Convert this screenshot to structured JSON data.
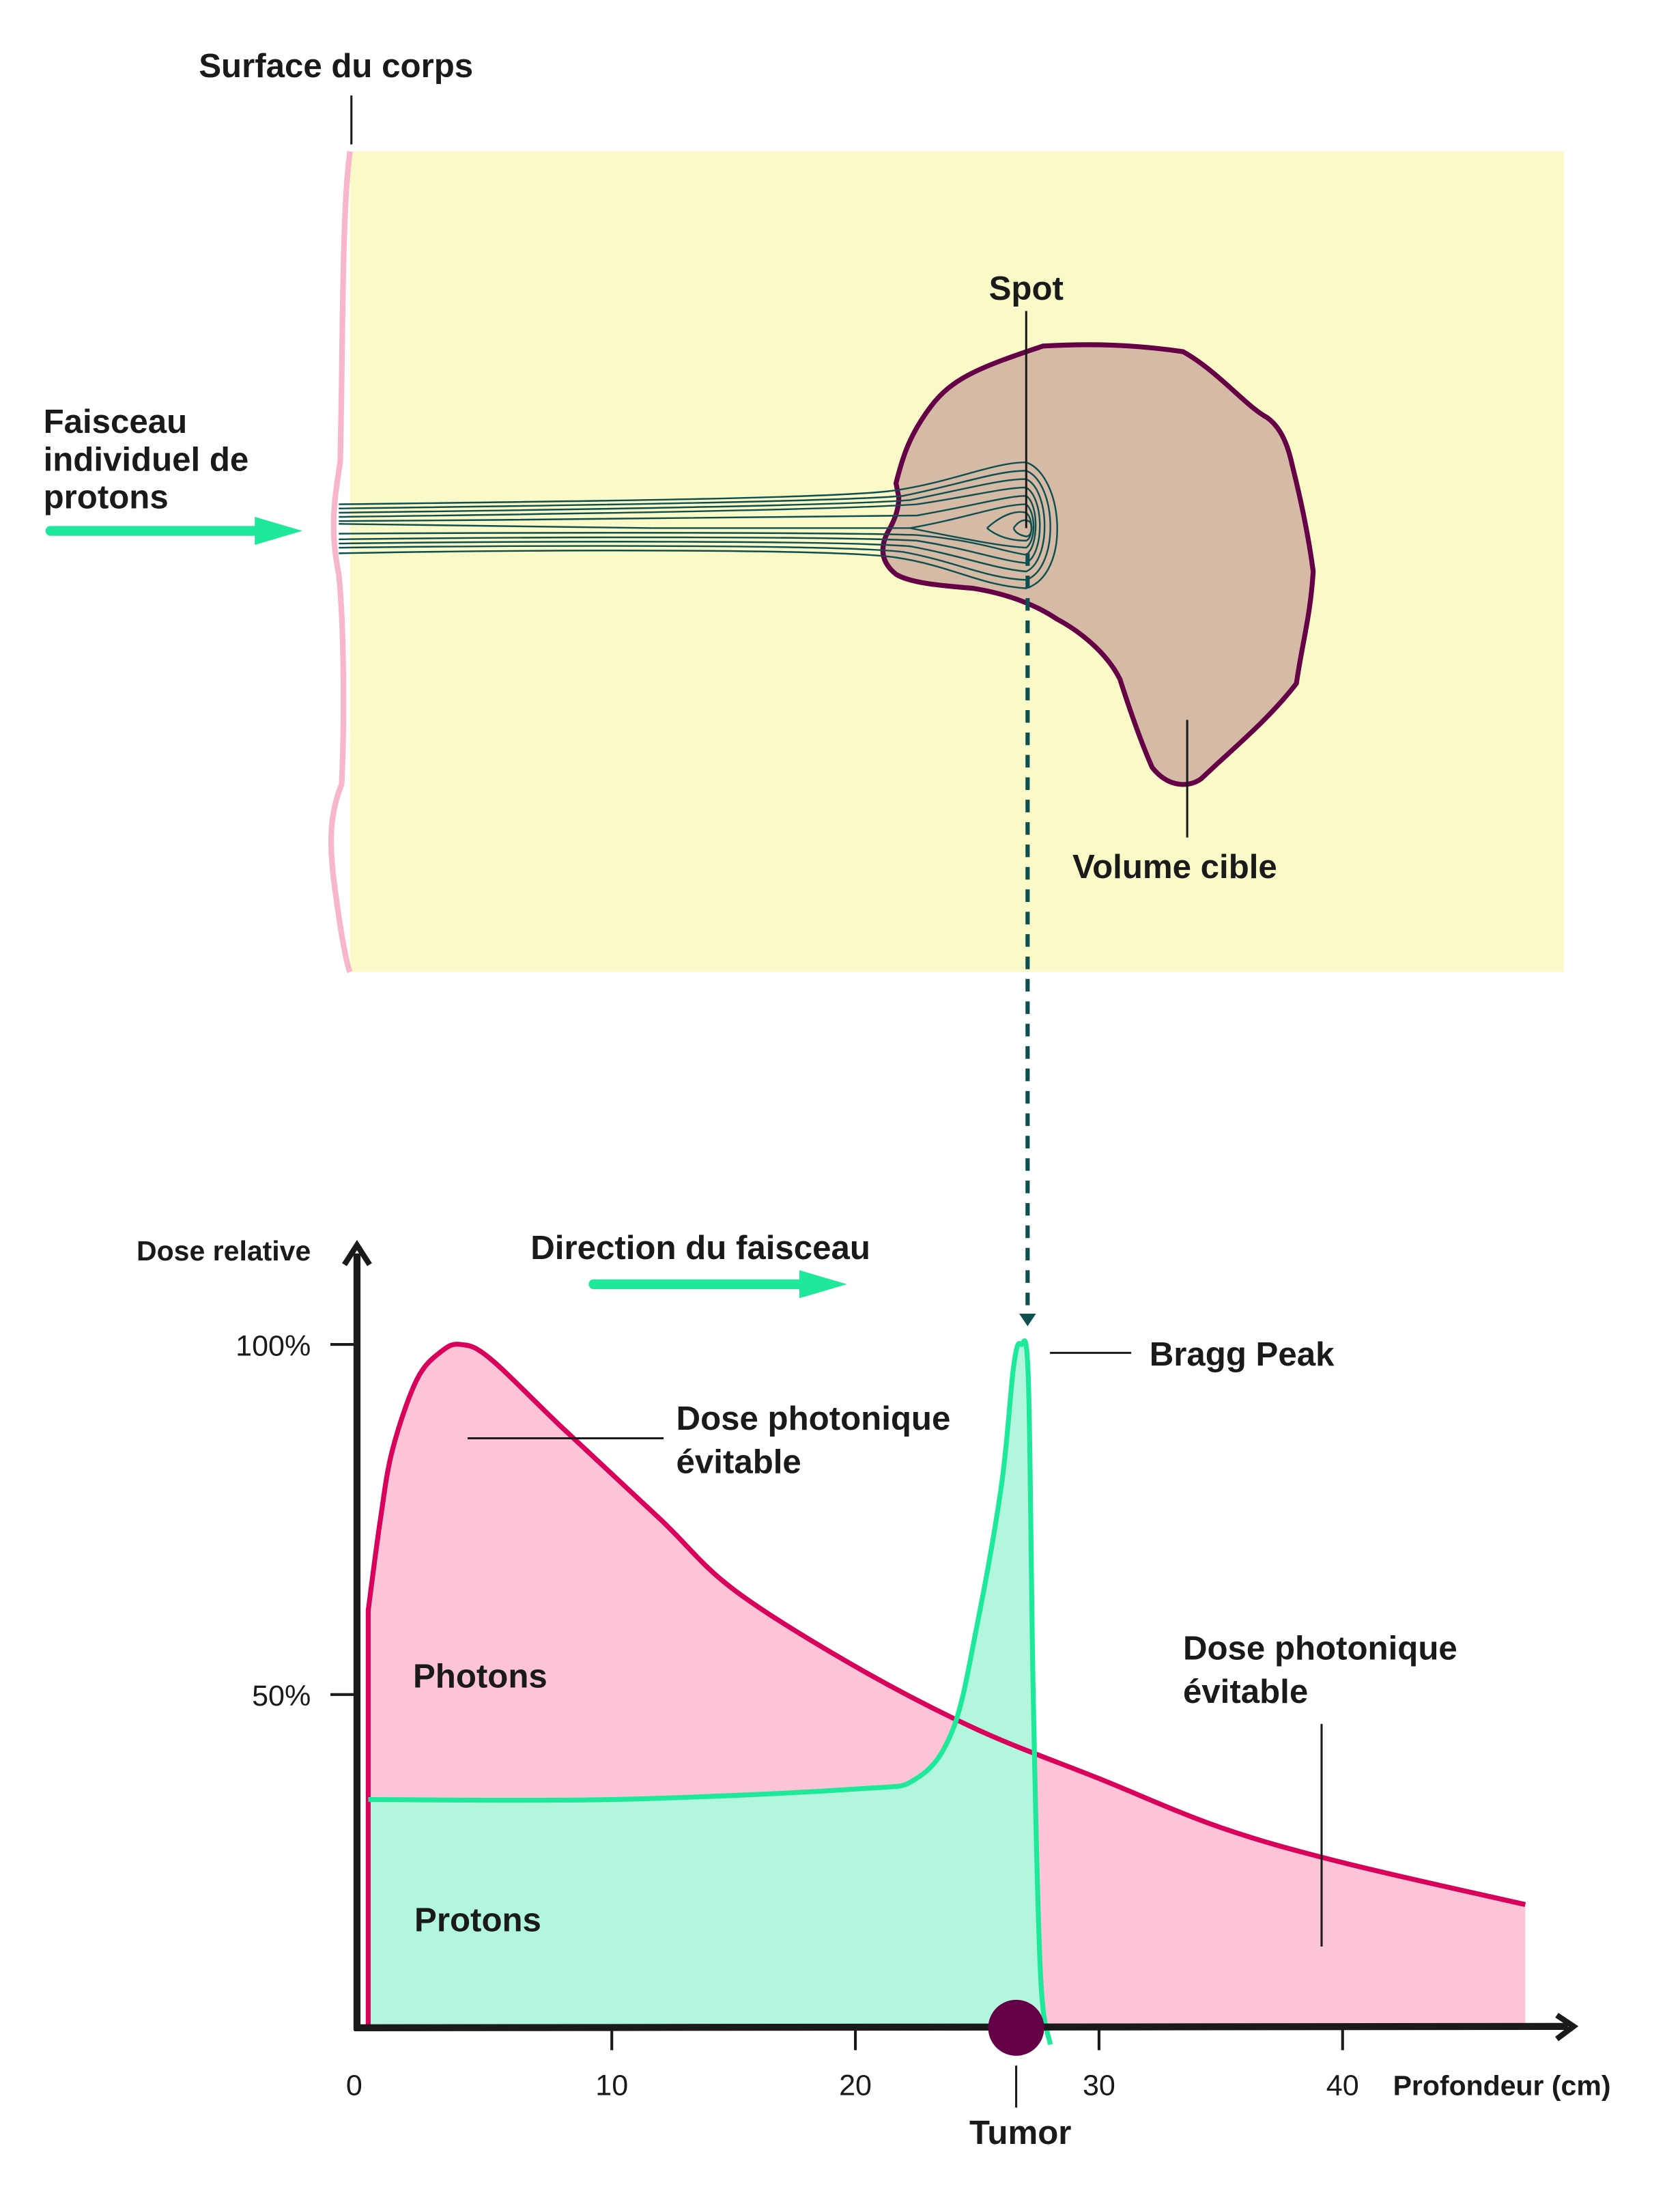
{
  "diagram": {
    "surface_label": "Surface du corps",
    "beam_label": [
      "Faisceau",
      "individuel de",
      "protons"
    ],
    "spot_label": "Spot",
    "target_label": "Volume cible"
  },
  "colors": {
    "body": "#fafac8",
    "body_surface": "#f7b6cc",
    "target_fill": "#d5bba6",
    "target_stroke": "#650046",
    "beam_lines": "#0f4f4f",
    "arrow": "#1ee89a",
    "photon_line": "#d8005a",
    "photon_fill": "#fcc4d6",
    "proton_line": "#1ee89a",
    "proton_fill": "#b2f7dd",
    "tumor": "#650046"
  },
  "chart_data": {
    "type": "area",
    "ylabel": "Dose relative",
    "xlabel": "Profondeur (cm)",
    "direction_label": "Direction du faisceau",
    "x_ticks": [
      "0",
      "10",
      "20",
      "30",
      "40"
    ],
    "y_ticks": [
      "50%",
      "100%"
    ],
    "xlim": [
      0,
      50
    ],
    "ylim": [
      0,
      100
    ],
    "series": [
      {
        "name": "Photons",
        "x": [
          0,
          0.5,
          1,
          2,
          3,
          3.8,
          5,
          8,
          12,
          15,
          20,
          25,
          30,
          35,
          40,
          47.5
        ],
        "y": [
          62,
          75,
          85,
          95,
          99,
          100,
          98,
          88,
          75,
          65,
          54,
          45,
          38,
          31,
          26,
          20
        ]
      },
      {
        "name": "Protons",
        "x": [
          0,
          10,
          20,
          22.5,
          24,
          25,
          26,
          26.5,
          26.8,
          27.1,
          27.3,
          27.6,
          28
        ],
        "y": [
          35,
          35,
          36.5,
          38,
          45,
          60,
          80,
          97,
          100,
          95,
          50,
          10,
          0
        ]
      }
    ],
    "annotations": {
      "bragg_peak": "Bragg Peak",
      "avoidable_dose": [
        "Dose photonique",
        "évitable"
      ],
      "avoidable_dose_2": [
        "Dose photonique",
        "évitable"
      ],
      "tumor": "Tumor",
      "tumor_depth_cm": 26.6
    }
  }
}
